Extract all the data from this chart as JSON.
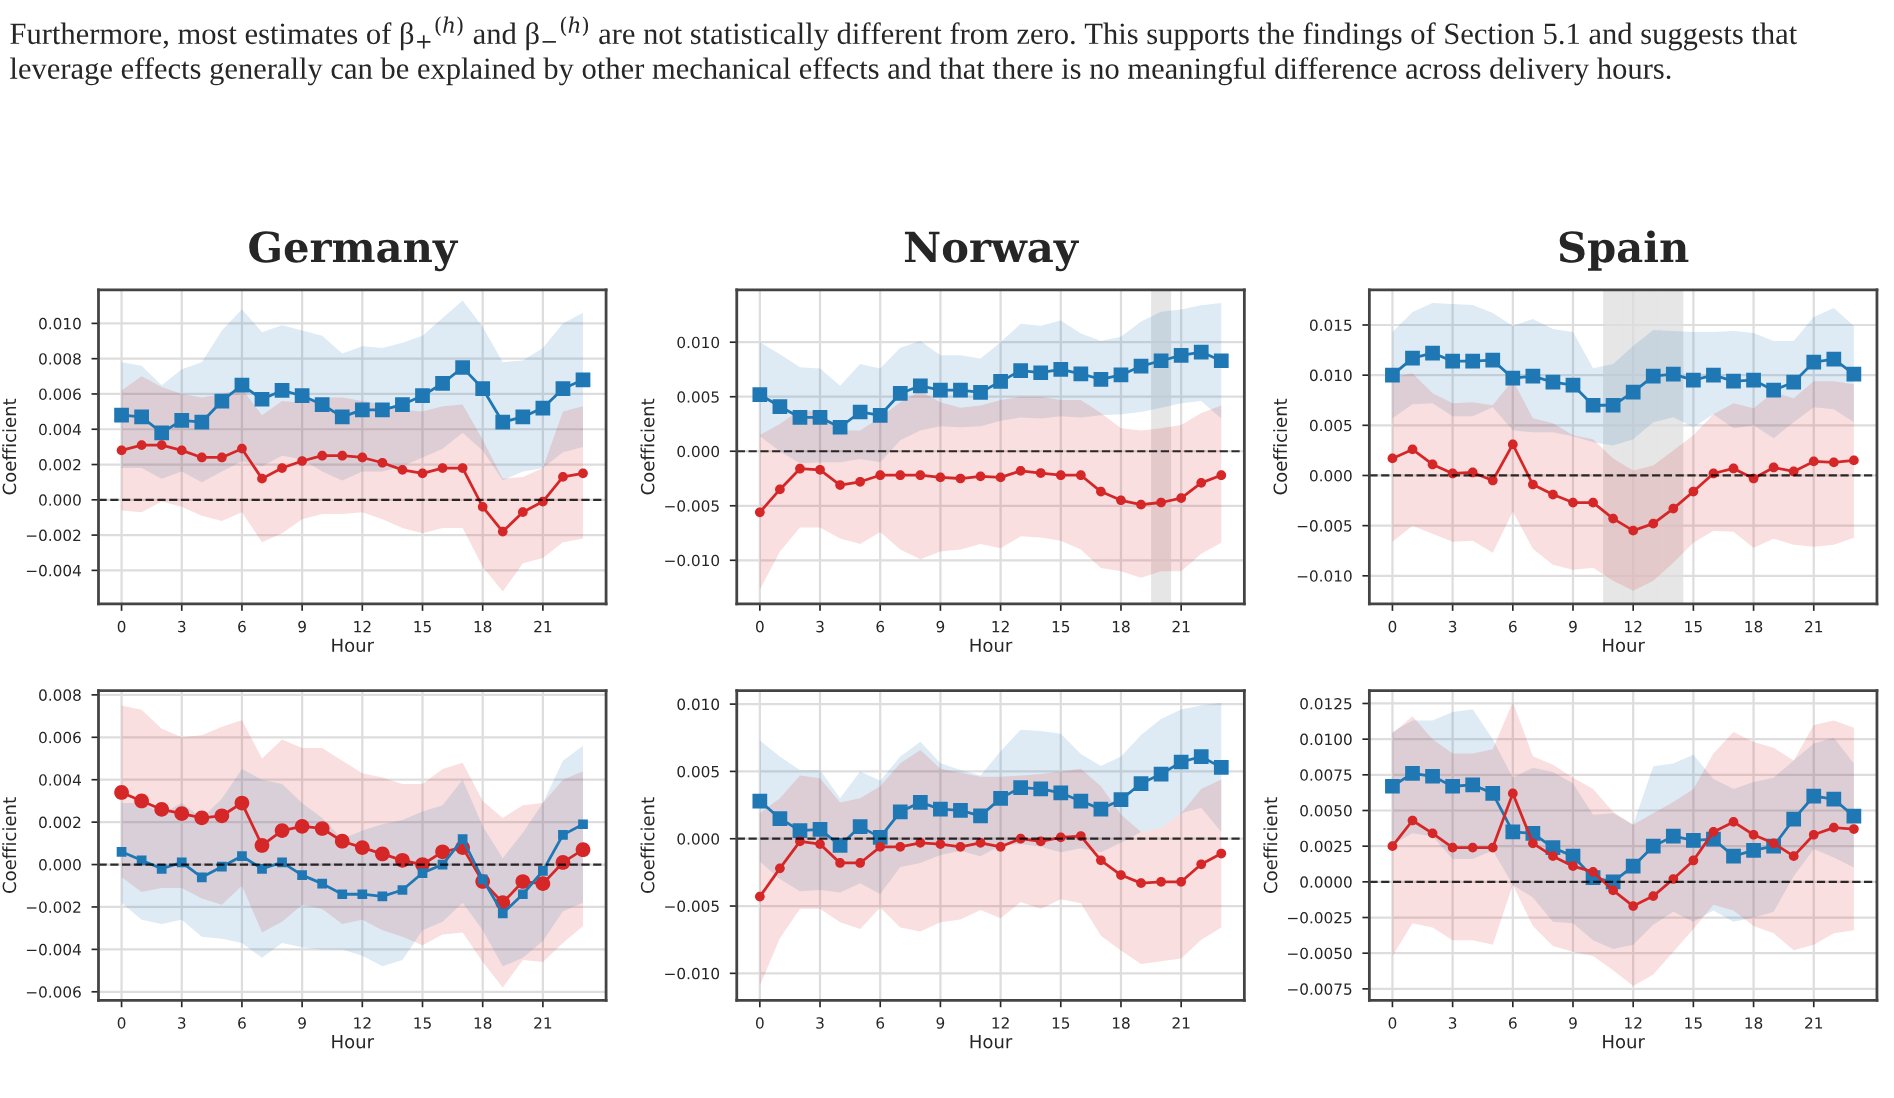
{
  "chart_data": [
    {
      "type": "line",
      "title": "Germany",
      "xlabel": "Hour",
      "ylabel": "Coefficient",
      "annotations": [
        "Furthermore, most estimates of β$_{+}$$^{(h)}$ and β$_{−}$$^{(h)}$ are not statistically different from zero. This supports the findings of Section 5.1 and suggests that leverage effects generally can be explained by other mechanical effects and that there is no meaningful difference across delivery hours."
      ],
      "x": [
        0,
        1,
        2,
        3,
        4,
        5,
        6,
        7,
        8,
        9,
        10,
        11,
        12,
        13,
        14,
        15,
        16,
        17,
        18,
        19,
        20,
        21,
        22,
        23
      ],
      "xlim": [
        -1.15,
        24.15
      ],
      "xticks": [
        0,
        3,
        6,
        9,
        12,
        15,
        18,
        21
      ],
      "ylim": [
        -0.0059,
        0.0119
      ],
      "yticks": [
        {
          "value": -0.004,
          "label": "−0.004"
        },
        {
          "value": -0.002,
          "label": "−0.002"
        },
        {
          "value": 0,
          "label": "0.000"
        },
        {
          "value": 0.002,
          "label": "0.002"
        },
        {
          "value": 0.004,
          "label": "0.004"
        },
        {
          "value": 0.006,
          "label": "0.006"
        },
        {
          "value": 0.008,
          "label": "0.008"
        },
        {
          "value": 0.01,
          "label": "0.010"
        }
      ],
      "grid": true,
      "legend": false,
      "ref_lines": [
        {
          "axis": "y",
          "value": 0,
          "color": "#000000",
          "line_style": "dashed"
        }
      ],
      "series": [
        {
          "color": "#1f77b4",
          "marker": "square",
          "values": [
            0.0048,
            0.0047,
            0.0038,
            0.0045,
            0.0044,
            0.0056,
            0.0065,
            0.0057,
            0.0062,
            0.0059,
            0.0054,
            0.0047,
            0.0051,
            0.0051,
            0.0054,
            0.0059,
            0.0066,
            0.0075,
            0.0063,
            0.0044,
            0.0047,
            0.0052,
            0.0063,
            0.0068
          ],
          "upper": [
            0.0078,
            0.0076,
            0.0065,
            0.0074,
            0.0078,
            0.0096,
            0.0108,
            0.0095,
            0.0099,
            0.0096,
            0.0093,
            0.0083,
            0.0087,
            0.0086,
            0.0089,
            0.0093,
            0.0103,
            0.0113,
            0.0098,
            0.0078,
            0.0079,
            0.0086,
            0.01,
            0.0106
          ],
          "lower": [
            0.0018,
            0.0018,
            0.0012,
            0.0016,
            0.001,
            0.0016,
            0.0022,
            0.0019,
            0.0025,
            0.0023,
            0.0016,
            0.0011,
            0.0016,
            0.0016,
            0.0019,
            0.0024,
            0.0029,
            0.0038,
            0.0028,
            0.0011,
            0.0016,
            0.0018,
            0.0027,
            0.003
          ]
        },
        {
          "color": "#d62728",
          "marker": "circle",
          "values": [
            0.0028,
            0.0031,
            0.0031,
            0.0028,
            0.0024,
            0.0024,
            0.0029,
            0.0012,
            0.0018,
            0.0022,
            0.0025,
            0.0025,
            0.0024,
            0.0021,
            0.0017,
            0.0015,
            0.0018,
            0.0018,
            -0.0004,
            -0.0018,
            -0.0007,
            -0.0001,
            0.0013,
            0.0015
          ],
          "upper": [
            0.0062,
            0.007,
            0.0064,
            0.006,
            0.0058,
            0.006,
            0.0063,
            0.0048,
            0.0056,
            0.0055,
            0.0058,
            0.0058,
            0.0056,
            0.0054,
            0.0051,
            0.005,
            0.0053,
            0.0054,
            0.0034,
            0.0012,
            0.0013,
            0.0018,
            0.005,
            0.0053
          ],
          "lower": [
            -0.0006,
            -0.0007,
            -0.0001,
            -0.0004,
            -0.0009,
            -0.0012,
            -0.0007,
            -0.0024,
            -0.0019,
            -0.0011,
            -0.0008,
            -0.0008,
            -0.0007,
            -0.0011,
            -0.0016,
            -0.0019,
            -0.0016,
            -0.0016,
            -0.0038,
            -0.0052,
            -0.0036,
            -0.0033,
            -0.0024,
            -0.0022
          ]
        }
      ]
    },
    {
      "type": "line",
      "title": "Norway",
      "xlabel": "Hour",
      "ylabel": "Coefficient",
      "x": [
        0,
        1,
        2,
        3,
        4,
        5,
        6,
        7,
        8,
        9,
        10,
        11,
        12,
        13,
        14,
        15,
        16,
        17,
        18,
        19,
        20,
        21,
        22,
        23
      ],
      "xlim": [
        -1.15,
        24.15
      ],
      "xticks": [
        0,
        3,
        6,
        9,
        12,
        15,
        18,
        21
      ],
      "ylim": [
        -0.014,
        0.0148
      ],
      "yticks": [
        {
          "value": -0.01,
          "label": "−0.010"
        },
        {
          "value": -0.005,
          "label": "−0.005"
        },
        {
          "value": 0,
          "label": "0.000"
        },
        {
          "value": 0.005,
          "label": "0.005"
        },
        {
          "value": 0.01,
          "label": "0.010"
        }
      ],
      "grid": true,
      "legend": false,
      "ref_lines": [
        {
          "axis": "y",
          "value": 0,
          "color": "#000000",
          "line_style": "dashed"
        }
      ],
      "bands": [
        {
          "axis": "x",
          "from": 19.5,
          "to": 20.5,
          "color": "#808080"
        }
      ],
      "series": [
        {
          "color": "#1f77b4",
          "marker": "square",
          "values": [
            0.0052,
            0.0041,
            0.0031,
            0.0031,
            0.0022,
            0.0036,
            0.0033,
            0.0053,
            0.006,
            0.0056,
            0.0056,
            0.0054,
            0.0064,
            0.0074,
            0.0072,
            0.0075,
            0.0071,
            0.0066,
            0.007,
            0.0078,
            0.0083,
            0.0088,
            0.0091,
            0.0083
          ],
          "upper": [
            0.01,
            0.0089,
            0.0077,
            0.0076,
            0.006,
            0.008,
            0.0076,
            0.0095,
            0.0101,
            0.0088,
            0.0088,
            0.0085,
            0.01,
            0.0117,
            0.0115,
            0.012,
            0.0108,
            0.0101,
            0.0105,
            0.0119,
            0.0128,
            0.013,
            0.0134,
            0.0136
          ],
          "lower": [
            0.0014,
            0.0,
            -0.0011,
            -0.001,
            -0.001,
            -0.0007,
            -0.001,
            0.001,
            0.0019,
            0.0023,
            0.0022,
            0.0023,
            0.0028,
            0.0031,
            0.003,
            0.0032,
            0.0031,
            0.0033,
            0.0034,
            0.0036,
            0.004,
            0.0044,
            0.0046,
            0.003
          ]
        },
        {
          "color": "#d62728",
          "marker": "circle",
          "values": [
            -0.0056,
            -0.0035,
            -0.0016,
            -0.0017,
            -0.0031,
            -0.0028,
            -0.0022,
            -0.0022,
            -0.0022,
            -0.0024,
            -0.0025,
            -0.0023,
            -0.0024,
            -0.0018,
            -0.002,
            -0.0022,
            -0.0022,
            -0.0037,
            -0.0045,
            -0.0049,
            -0.0047,
            -0.0043,
            -0.0029,
            -0.0022
          ],
          "upper": [
            0.0015,
            0.0025,
            0.0038,
            0.0036,
            0.0019,
            0.0019,
            0.0031,
            0.0045,
            0.0055,
            0.0045,
            0.004,
            0.0042,
            0.0047,
            0.005,
            0.005,
            0.0047,
            0.0047,
            0.0035,
            0.0021,
            0.0019,
            0.0021,
            0.0024,
            0.0035,
            0.0042
          ],
          "lower": [
            -0.0127,
            -0.0092,
            -0.007,
            -0.007,
            -0.008,
            -0.0085,
            -0.0074,
            -0.009,
            -0.0099,
            -0.0092,
            -0.009,
            -0.0085,
            -0.0089,
            -0.0078,
            -0.0079,
            -0.0082,
            -0.009,
            -0.0107,
            -0.011,
            -0.0116,
            -0.011,
            -0.011,
            -0.0094,
            -0.0084
          ]
        }
      ]
    },
    {
      "type": "line",
      "title": "Spain",
      "xlabel": "Hour",
      "ylabel": "Coefficient",
      "x": [
        0,
        1,
        2,
        3,
        4,
        5,
        6,
        7,
        8,
        9,
        10,
        11,
        12,
        13,
        14,
        15,
        16,
        17,
        18,
        19,
        20,
        21,
        22,
        23
      ],
      "xlim": [
        -1.15,
        24.15
      ],
      "xticks": [
        0,
        3,
        6,
        9,
        12,
        15,
        18,
        21
      ],
      "ylim": [
        -0.0128,
        0.0185
      ],
      "yticks": [
        {
          "value": -0.01,
          "label": "−0.010"
        },
        {
          "value": -0.005,
          "label": "−0.005"
        },
        {
          "value": 0,
          "label": "0.000"
        },
        {
          "value": 0.005,
          "label": "0.005"
        },
        {
          "value": 0.01,
          "label": "0.010"
        },
        {
          "value": 0.015,
          "label": "0.015"
        }
      ],
      "grid": true,
      "legend": false,
      "ref_lines": [
        {
          "axis": "y",
          "value": 0,
          "color": "#000000",
          "line_style": "dashed"
        }
      ],
      "bands": [
        {
          "axis": "x",
          "from": 10.5,
          "to": 11.5,
          "color": "#808080"
        },
        {
          "axis": "x",
          "from": 11.5,
          "to": 12.5,
          "color": "#808080"
        },
        {
          "axis": "x",
          "from": 12.5,
          "to": 13.5,
          "color": "#808080"
        },
        {
          "axis": "x",
          "from": 13.5,
          "to": 14.5,
          "color": "#808080"
        }
      ],
      "series": [
        {
          "color": "#1f77b4",
          "marker": "square",
          "values": [
            0.01,
            0.0117,
            0.0122,
            0.0114,
            0.0114,
            0.0115,
            0.0097,
            0.0099,
            0.0093,
            0.009,
            0.007,
            0.007,
            0.0083,
            0.0099,
            0.0101,
            0.0095,
            0.01,
            0.0094,
            0.0095,
            0.0085,
            0.0093,
            0.0113,
            0.0116,
            0.0101
          ],
          "upper": [
            0.0143,
            0.0163,
            0.0172,
            0.0171,
            0.017,
            0.0162,
            0.0149,
            0.0156,
            0.0146,
            0.0143,
            0.0107,
            0.0111,
            0.0129,
            0.0145,
            0.0144,
            0.0143,
            0.0143,
            0.0144,
            0.0142,
            0.0134,
            0.0134,
            0.0158,
            0.0167,
            0.0149
          ],
          "lower": [
            0.0057,
            0.0071,
            0.0072,
            0.0059,
            0.0059,
            0.0068,
            0.0045,
            0.0043,
            0.0043,
            0.0039,
            0.0033,
            0.003,
            0.0036,
            0.0053,
            0.0058,
            0.0048,
            0.0061,
            0.0047,
            0.005,
            0.0037,
            0.0053,
            0.0068,
            0.0066,
            0.0053
          ]
        },
        {
          "color": "#d62728",
          "marker": "circle",
          "values": [
            0.0017,
            0.0026,
            0.0011,
            0.0002,
            0.0003,
            -0.0005,
            0.0031,
            -0.0009,
            -0.0019,
            -0.0027,
            -0.0027,
            -0.0043,
            -0.0055,
            -0.0048,
            -0.0033,
            -0.0016,
            0.0002,
            0.0007,
            -0.0003,
            0.0008,
            0.0004,
            0.0014,
            0.0013,
            0.0015
          ],
          "upper": [
            0.0098,
            0.0102,
            0.0082,
            0.0072,
            0.0073,
            0.007,
            0.0095,
            0.0057,
            0.0052,
            0.004,
            0.0036,
            0.0017,
            0.0005,
            0.001,
            0.0025,
            0.004,
            0.0061,
            0.0072,
            0.0067,
            0.0083,
            0.0077,
            0.0094,
            0.0094,
            0.0091
          ],
          "lower": [
            -0.0066,
            -0.005,
            -0.0058,
            -0.0066,
            -0.0065,
            -0.0077,
            -0.0036,
            -0.0073,
            -0.0089,
            -0.0094,
            -0.0092,
            -0.0105,
            -0.0115,
            -0.0105,
            -0.0087,
            -0.0067,
            -0.0055,
            -0.0056,
            -0.0072,
            -0.0063,
            -0.0069,
            -0.0071,
            -0.0069,
            -0.0062
          ]
        }
      ]
    },
    {
      "type": "line",
      "xlabel": "Hour",
      "ylabel": "Coefficient",
      "x": [
        0,
        1,
        2,
        3,
        4,
        5,
        6,
        7,
        8,
        9,
        10,
        11,
        12,
        13,
        14,
        15,
        16,
        17,
        18,
        19,
        20,
        21,
        22,
        23
      ],
      "xlim": [
        -1.15,
        24.15
      ],
      "xticks": [
        0,
        3,
        6,
        9,
        12,
        15,
        18,
        21
      ],
      "ylim": [
        -0.0064,
        0.0082
      ],
      "yticks": [
        {
          "value": -0.006,
          "label": "−0.006"
        },
        {
          "value": -0.004,
          "label": "−0.004"
        },
        {
          "value": -0.002,
          "label": "−0.002"
        },
        {
          "value": 0,
          "label": "0.000"
        },
        {
          "value": 0.002,
          "label": "0.002"
        },
        {
          "value": 0.004,
          "label": "0.004"
        },
        {
          "value": 0.006,
          "label": "0.006"
        },
        {
          "value": 0.008,
          "label": "0.008"
        }
      ],
      "grid": true,
      "legend": false,
      "ref_lines": [
        {
          "axis": "y",
          "value": 0,
          "color": "#000000",
          "line_style": "dashed"
        }
      ],
      "series": [
        {
          "color": "#d62728",
          "marker": "circle",
          "values": [
            0.0034,
            0.003,
            0.0026,
            0.0024,
            0.0022,
            0.0023,
            0.0029,
            0.0009,
            0.0016,
            0.0018,
            0.0017,
            0.0011,
            0.0008,
            0.0005,
            0.0002,
            0.0,
            0.0006,
            0.0008,
            -0.0008,
            -0.0018,
            -0.0008,
            -0.0009,
            0.0001,
            0.0007
          ],
          "upper": [
            0.0075,
            0.0073,
            0.0064,
            0.006,
            0.0061,
            0.0065,
            0.0068,
            0.005,
            0.0059,
            0.0055,
            0.0055,
            0.0049,
            0.0043,
            0.0041,
            0.0038,
            0.0038,
            0.0045,
            0.0048,
            0.003,
            0.0022,
            0.0028,
            0.0029,
            0.004,
            0.0044
          ],
          "lower": [
            -0.0006,
            -0.0013,
            -0.0011,
            -0.0011,
            -0.0016,
            -0.0019,
            -0.001,
            -0.0032,
            -0.0027,
            -0.0019,
            -0.0021,
            -0.0028,
            -0.0026,
            -0.0031,
            -0.0034,
            -0.0038,
            -0.0033,
            -0.0032,
            -0.0046,
            -0.0058,
            -0.0045,
            -0.0046,
            -0.0037,
            -0.0029
          ]
        },
        {
          "color": "#1f77b4",
          "marker": "square",
          "values": [
            0.0006,
            0.0002,
            -0.0002,
            0.0001,
            -0.0006,
            -0.0001,
            0.0004,
            -0.0002,
            0.0001,
            -0.0005,
            -0.0009,
            -0.0014,
            -0.0014,
            -0.0015,
            -0.0012,
            -0.0004,
            0.0,
            0.0012,
            -0.0007,
            -0.0023,
            -0.0014,
            -0.0003,
            0.0014,
            0.0019
          ],
          "upper": [
            0.0029,
            0.0029,
            0.0024,
            0.0029,
            0.0022,
            0.0031,
            0.0045,
            0.004,
            0.0038,
            0.0029,
            0.0022,
            0.0012,
            0.0016,
            0.0019,
            0.0021,
            0.0025,
            0.0028,
            0.004,
            0.0018,
            0.0003,
            0.0015,
            0.0029,
            0.0049,
            0.0056
          ],
          "lower": [
            -0.0018,
            -0.0026,
            -0.0028,
            -0.0026,
            -0.0034,
            -0.0035,
            -0.0037,
            -0.0044,
            -0.0037,
            -0.0039,
            -0.004,
            -0.004,
            -0.0043,
            -0.0048,
            -0.0045,
            -0.0031,
            -0.0027,
            -0.0018,
            -0.0031,
            -0.0048,
            -0.0044,
            -0.0036,
            -0.0022,
            -0.0018
          ]
        }
      ]
    },
    {
      "type": "line",
      "xlabel": "Hour",
      "ylabel": "Coefficient",
      "x": [
        0,
        1,
        2,
        3,
        4,
        5,
        6,
        7,
        8,
        9,
        10,
        11,
        12,
        13,
        14,
        15,
        16,
        17,
        18,
        19,
        20,
        21,
        22,
        23
      ],
      "xlim": [
        -1.15,
        24.15
      ],
      "xticks": [
        0,
        3,
        6,
        9,
        12,
        15,
        18,
        21
      ],
      "ylim": [
        -0.012,
        0.011
      ],
      "yticks": [
        {
          "value": -0.01,
          "label": "−0.010"
        },
        {
          "value": -0.005,
          "label": "−0.005"
        },
        {
          "value": 0,
          "label": "0.000"
        },
        {
          "value": 0.005,
          "label": "0.005"
        },
        {
          "value": 0.01,
          "label": "0.010"
        }
      ],
      "grid": true,
      "legend": false,
      "ref_lines": [
        {
          "axis": "y",
          "value": 0,
          "color": "#000000",
          "line_style": "dashed"
        }
      ],
      "series": [
        {
          "color": "#1f77b4",
          "marker": "square",
          "values": [
            0.0028,
            0.0015,
            0.0006,
            0.0007,
            -0.0005,
            0.0009,
            0.0001,
            0.002,
            0.0027,
            0.0022,
            0.0021,
            0.0017,
            0.003,
            0.0038,
            0.0037,
            0.0034,
            0.0028,
            0.0022,
            0.0029,
            0.0041,
            0.0048,
            0.0057,
            0.0061,
            0.0053
          ],
          "upper": [
            0.0073,
            0.0061,
            0.0051,
            0.0051,
            0.003,
            0.005,
            0.0043,
            0.0061,
            0.0072,
            0.0056,
            0.0051,
            0.0047,
            0.0065,
            0.0081,
            0.008,
            0.0078,
            0.0063,
            0.0054,
            0.0061,
            0.0077,
            0.0089,
            0.0096,
            0.0099,
            0.0101
          ],
          "lower": [
            -0.0017,
            -0.003,
            -0.0039,
            -0.0038,
            -0.004,
            -0.0033,
            -0.0041,
            -0.0021,
            -0.0018,
            -0.0012,
            -0.0009,
            -0.0013,
            -0.0005,
            -0.0004,
            -0.0006,
            -0.001,
            -0.0007,
            -0.001,
            -0.0003,
            0.0005,
            0.0008,
            0.0019,
            0.0023,
            0.0005
          ]
        },
        {
          "color": "#d62728",
          "marker": "circle",
          "values": [
            -0.0043,
            -0.0022,
            -0.0002,
            -0.0004,
            -0.0018,
            -0.0018,
            -0.0006,
            -0.0006,
            -0.0003,
            -0.0004,
            -0.0006,
            -0.0003,
            -0.0006,
            0.0,
            -0.0002,
            0.0001,
            0.0002,
            -0.0016,
            -0.0027,
            -0.0033,
            -0.0032,
            -0.0032,
            -0.0019,
            -0.0011
          ],
          "upper": [
            0.0019,
            0.003,
            0.0047,
            0.0045,
            0.0027,
            0.003,
            0.0039,
            0.0056,
            0.0066,
            0.0052,
            0.0049,
            0.0046,
            0.0046,
            0.0047,
            0.0048,
            0.005,
            0.0052,
            0.0039,
            0.0018,
            0.0005,
            0.0008,
            0.0019,
            0.0037,
            0.0044
          ],
          "lower": [
            -0.0109,
            -0.0074,
            -0.0052,
            -0.0052,
            -0.0062,
            -0.0067,
            -0.0051,
            -0.0066,
            -0.0069,
            -0.0062,
            -0.006,
            -0.0053,
            -0.0059,
            -0.0047,
            -0.0052,
            -0.0045,
            -0.0048,
            -0.0072,
            -0.0083,
            -0.0093,
            -0.0091,
            -0.0089,
            -0.0075,
            -0.0066
          ]
        }
      ]
    },
    {
      "type": "line",
      "xlabel": "Hour",
      "ylabel": "Coefficient",
      "x": [
        0,
        1,
        2,
        3,
        4,
        5,
        6,
        7,
        8,
        9,
        10,
        11,
        12,
        13,
        14,
        15,
        16,
        17,
        18,
        19,
        20,
        21,
        22,
        23
      ],
      "xlim": [
        -1.15,
        24.15
      ],
      "xticks": [
        0,
        3,
        6,
        9,
        12,
        15,
        18,
        21
      ],
      "ylim": [
        -0.0083,
        0.0134
      ],
      "yticks": [
        {
          "value": -0.0075,
          "label": "−0.0075"
        },
        {
          "value": -0.005,
          "label": "−0.0050"
        },
        {
          "value": -0.0025,
          "label": "−0.0025"
        },
        {
          "value": 0,
          "label": "0.0000"
        },
        {
          "value": 0.0025,
          "label": "0.0025"
        },
        {
          "value": 0.005,
          "label": "0.0050"
        },
        {
          "value": 0.0075,
          "label": "0.0075"
        },
        {
          "value": 0.01,
          "label": "0.0100"
        },
        {
          "value": 0.0125,
          "label": "0.0125"
        }
      ],
      "grid": true,
      "legend": false,
      "ref_lines": [
        {
          "axis": "y",
          "value": 0,
          "color": "#000000",
          "line_style": "dashed"
        }
      ],
      "series": [
        {
          "color": "#1f77b4",
          "marker": "square",
          "values": [
            0.0067,
            0.0076,
            0.0074,
            0.0067,
            0.0068,
            0.0062,
            0.0035,
            0.0034,
            0.0024,
            0.0018,
            0.0003,
            0.0,
            0.0011,
            0.0025,
            0.0032,
            0.0029,
            0.003,
            0.0018,
            0.0022,
            0.0025,
            0.0044,
            0.006,
            0.0058,
            0.0046
          ],
          "upper": [
            0.0105,
            0.0113,
            0.0113,
            0.0119,
            0.0121,
            0.01,
            0.0073,
            0.008,
            0.0077,
            0.0069,
            0.0047,
            0.0048,
            0.004,
            0.0081,
            0.0083,
            0.0089,
            0.0072,
            0.0065,
            0.007,
            0.0073,
            0.0085,
            0.0097,
            0.0101,
            0.0083
          ],
          "lower": [
            0.0026,
            0.0034,
            0.0032,
            0.0016,
            0.0016,
            0.0022,
            -0.0002,
            -0.0011,
            -0.0028,
            -0.0029,
            -0.0041,
            -0.0047,
            -0.0044,
            -0.003,
            -0.0021,
            -0.0028,
            -0.002,
            -0.0028,
            -0.0025,
            -0.0021,
            0.0004,
            0.0023,
            0.0017,
            0.001
          ]
        },
        {
          "color": "#d62728",
          "marker": "circle",
          "values": [
            0.0025,
            0.0043,
            0.0034,
            0.0024,
            0.0024,
            0.0024,
            0.0062,
            0.0027,
            0.0018,
            0.0011,
            0.0007,
            -0.0006,
            -0.0017,
            -0.001,
            0.0002,
            0.0015,
            0.0035,
            0.0042,
            0.0033,
            0.0027,
            0.0018,
            0.0033,
            0.0038,
            0.0037
          ],
          "upper": [
            0.0104,
            0.0116,
            0.01,
            0.009,
            0.009,
            0.0093,
            0.0126,
            0.0088,
            0.0082,
            0.0073,
            0.0065,
            0.0049,
            0.004,
            0.0048,
            0.0056,
            0.0065,
            0.009,
            0.0105,
            0.0098,
            0.0094,
            0.0085,
            0.011,
            0.0113,
            0.0108
          ],
          "lower": [
            -0.0052,
            -0.0029,
            -0.0032,
            -0.0041,
            -0.0041,
            -0.0044,
            -0.0002,
            -0.0031,
            -0.0045,
            -0.0049,
            -0.0052,
            -0.0062,
            -0.0073,
            -0.0065,
            -0.0049,
            -0.0033,
            -0.0016,
            -0.002,
            -0.0031,
            -0.0036,
            -0.0048,
            -0.0044,
            -0.0036,
            -0.0034
          ]
        }
      ]
    }
  ]
}
